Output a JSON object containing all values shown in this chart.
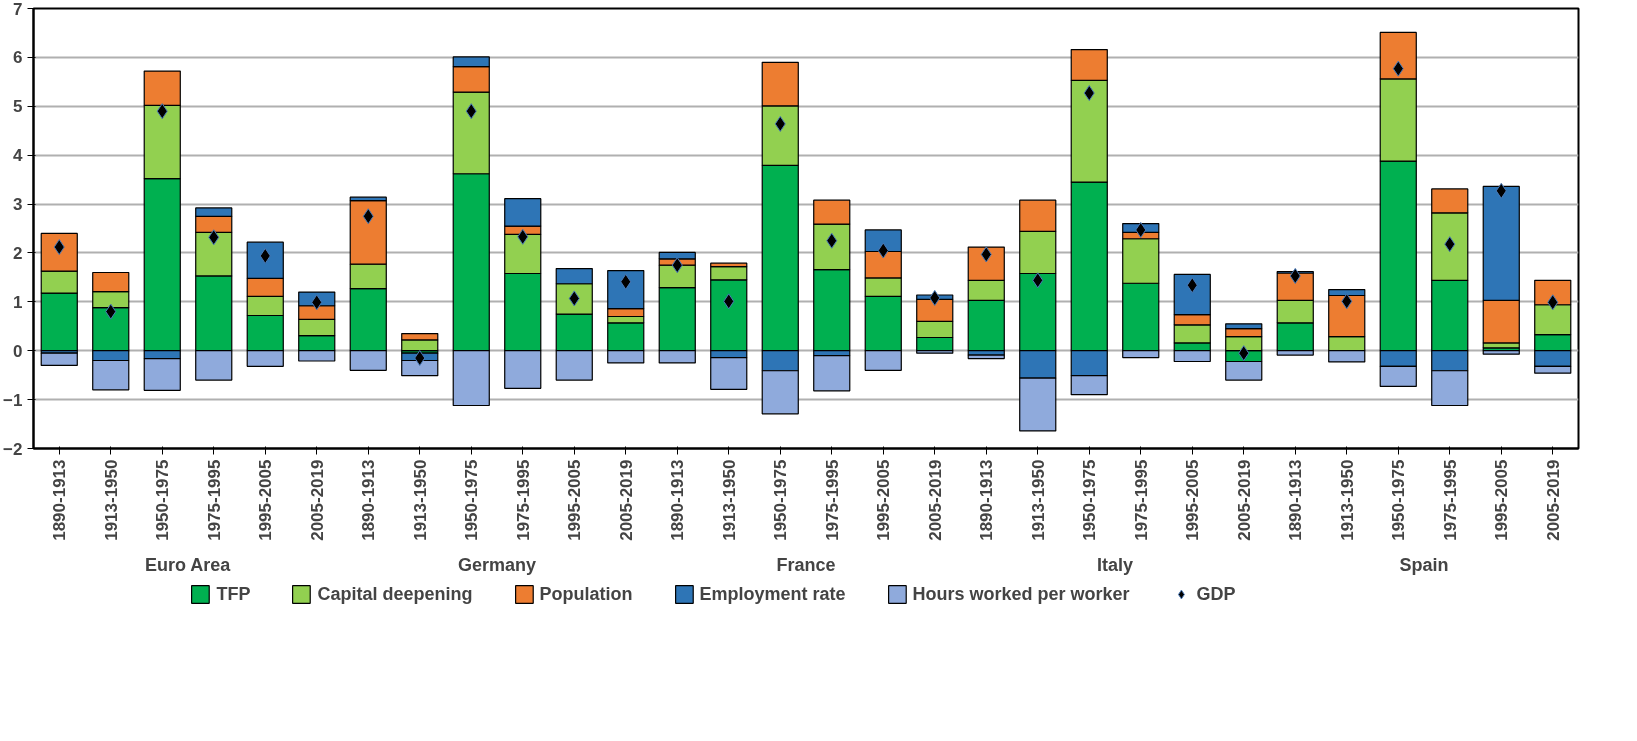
{
  "chart_data": {
    "type": "bar",
    "stacked": true,
    "categories": [
      "1890-1913",
      "1913-1950",
      "1950-1975",
      "1975-1995",
      "1995-2005",
      "2005-2019",
      "1890-1913",
      "1913-1950",
      "1950-1975",
      "1975-1995",
      "1995-2005",
      "2005-2019",
      "1890-1913",
      "1913-1950",
      "1950-1975",
      "1975-1995",
      "1995-2005",
      "2005-2019",
      "1890-1913",
      "1913-1950",
      "1950-1975",
      "1975-1995",
      "1995-2005",
      "2005-2019",
      "1890-1913",
      "1913-1950",
      "1950-1975",
      "1975-1995",
      "1995-2005",
      "2005-2019"
    ],
    "annotations": [
      "Euro Area",
      "Germany",
      "France",
      "Italy",
      "Spain"
    ],
    "series": [
      {
        "name": "TFP",
        "color": "#00b050",
        "values": [
          1.18,
          0.88,
          3.52,
          1.53,
          0.72,
          0.31,
          1.27,
          -0.05,
          3.62,
          1.58,
          0.75,
          0.57,
          1.29,
          1.45,
          3.79,
          1.66,
          1.11,
          0.27,
          1.03,
          1.58,
          3.45,
          1.38,
          0.16,
          -0.22,
          0.57,
          null,
          3.88,
          1.44,
          0.06,
          0.33
        ]
      },
      {
        "name": "Capital deepening",
        "color": "#92d050",
        "values": [
          0.45,
          0.33,
          1.5,
          0.89,
          0.39,
          0.33,
          0.5,
          0.22,
          1.67,
          0.8,
          0.62,
          0.13,
          0.46,
          0.27,
          1.22,
          0.93,
          0.38,
          0.33,
          0.41,
          0.86,
          2.08,
          0.91,
          0.37,
          0.29,
          0.46,
          0.29,
          1.68,
          1.38,
          0.1,
          0.61
        ]
      },
      {
        "name": "Population",
        "color": "#ed7d31",
        "values": [
          0.77,
          0.39,
          0.7,
          0.33,
          0.37,
          0.28,
          1.3,
          0.13,
          0.52,
          0.17,
          null,
          0.16,
          0.13,
          0.07,
          0.89,
          0.49,
          0.54,
          0.45,
          0.68,
          0.64,
          0.63,
          0.13,
          0.21,
          0.16,
          0.56,
          0.84,
          0.95,
          0.49,
          0.87,
          0.5
        ]
      },
      {
        "name": "Employment rate",
        "color": "#2e75b6",
        "values": [
          -0.05,
          -0.2,
          -0.16,
          0.17,
          0.74,
          0.28,
          0.07,
          -0.15,
          0.2,
          0.56,
          0.31,
          0.78,
          0.13,
          -0.14,
          -0.41,
          -0.1,
          0.44,
          0.09,
          -0.09,
          -0.56,
          -0.51,
          0.18,
          0.82,
          0.1,
          0.03,
          0.12,
          -0.32,
          -0.41,
          2.33,
          -0.32
        ]
      },
      {
        "name": "Hours worked per worker",
        "color": "#8faadc",
        "values": [
          -0.25,
          -0.6,
          -0.65,
          -0.6,
          -0.32,
          -0.21,
          -0.4,
          -0.31,
          -1.12,
          -0.77,
          -0.6,
          -0.25,
          -0.25,
          -0.65,
          -0.88,
          -0.72,
          -0.4,
          -0.05,
          -0.07,
          -1.08,
          -0.39,
          -0.14,
          -0.22,
          -0.38,
          -0.09,
          -0.23,
          -0.41,
          -0.71,
          -0.07,
          -0.14
        ]
      },
      {
        "name": "GDP",
        "type": "scatter",
        "marker": "diamond",
        "color": "#000000",
        "values": [
          2.12,
          0.8,
          4.9,
          2.32,
          1.94,
          0.99,
          2.75,
          -0.15,
          4.9,
          2.33,
          1.07,
          1.41,
          1.75,
          1.01,
          4.64,
          2.25,
          2.05,
          1.08,
          1.97,
          1.44,
          5.27,
          2.47,
          1.34,
          -0.05,
          1.53,
          1.01,
          5.77,
          2.18,
          3.27,
          0.99
        ]
      }
    ],
    "ylim": [
      -2,
      7
    ],
    "yticks": [
      -2,
      -1,
      0,
      1,
      2,
      3,
      4,
      5,
      6,
      7
    ],
    "grid": "y",
    "legend": "bottom"
  }
}
